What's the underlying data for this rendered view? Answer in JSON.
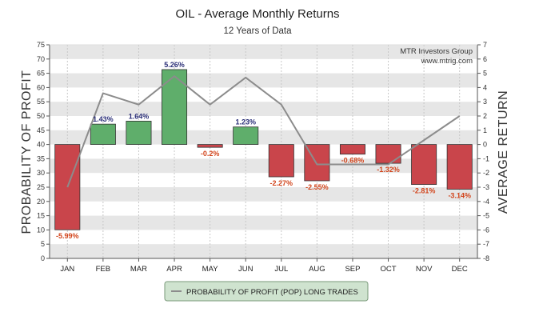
{
  "chart_data": {
    "type": "bar",
    "title": "OIL - Average Monthly Returns",
    "subtitle": "12 Years of Data",
    "categories": [
      "JAN",
      "FEB",
      "MAR",
      "APR",
      "MAY",
      "JUN",
      "JUL",
      "AUG",
      "SEP",
      "OCT",
      "NOV",
      "DEC"
    ],
    "series": [
      {
        "name": "Average Return",
        "axis": "right",
        "kind": "bar",
        "values": [
          -5.99,
          1.43,
          1.64,
          5.26,
          -0.2,
          1.23,
          -2.27,
          -2.55,
          -0.68,
          -1.32,
          -2.81,
          -3.14
        ],
        "labels": [
          "-5.99%",
          "1.43%",
          "1.64%",
          "5.26%",
          "-0.2%",
          "1.23%",
          "-2.27%",
          "-2.55%",
          "-0.68%",
          "-1.32%",
          "-2.81%",
          "-3.14%"
        ]
      },
      {
        "name": "PROBABILITY OF PROFIT (POP) LONG TRADES",
        "axis": "left",
        "kind": "line",
        "values": [
          25,
          58,
          54,
          64,
          54,
          63.5,
          54,
          33,
          33,
          33,
          41.5,
          50
        ]
      }
    ],
    "ylabel": "PROBABILITY OF PROFIT",
    "ylabel_right": "AVERAGE RETURN",
    "ylim": [
      0,
      75
    ],
    "ylim_right": [
      -8,
      7
    ],
    "yticks": [
      0,
      5,
      10,
      15,
      20,
      25,
      30,
      35,
      40,
      45,
      50,
      55,
      60,
      65,
      70,
      75
    ],
    "yticks_right": [
      -8,
      -7,
      -6,
      -5,
      -4,
      -3,
      -2,
      -1,
      0,
      1,
      2,
      3,
      4,
      5,
      6,
      7
    ],
    "grid": "horizontal bands",
    "credit_line1": "MTR Investors Group",
    "credit_line2": "www.mtrig.com",
    "legend_label": "PROBABILITY OF PROFIT (POP) LONG TRADES",
    "legend_position": "bottom",
    "colors": {
      "positive_bar": "#5fae6b",
      "negative_bar": "#c9454b",
      "positive_label": "#2b2f78",
      "negative_label": "#d2451c",
      "line": "#8c8c8c",
      "band": "#e6e6e6",
      "legend_bg": "#cfe3cf",
      "legend_border": "#7a9a7a"
    }
  }
}
